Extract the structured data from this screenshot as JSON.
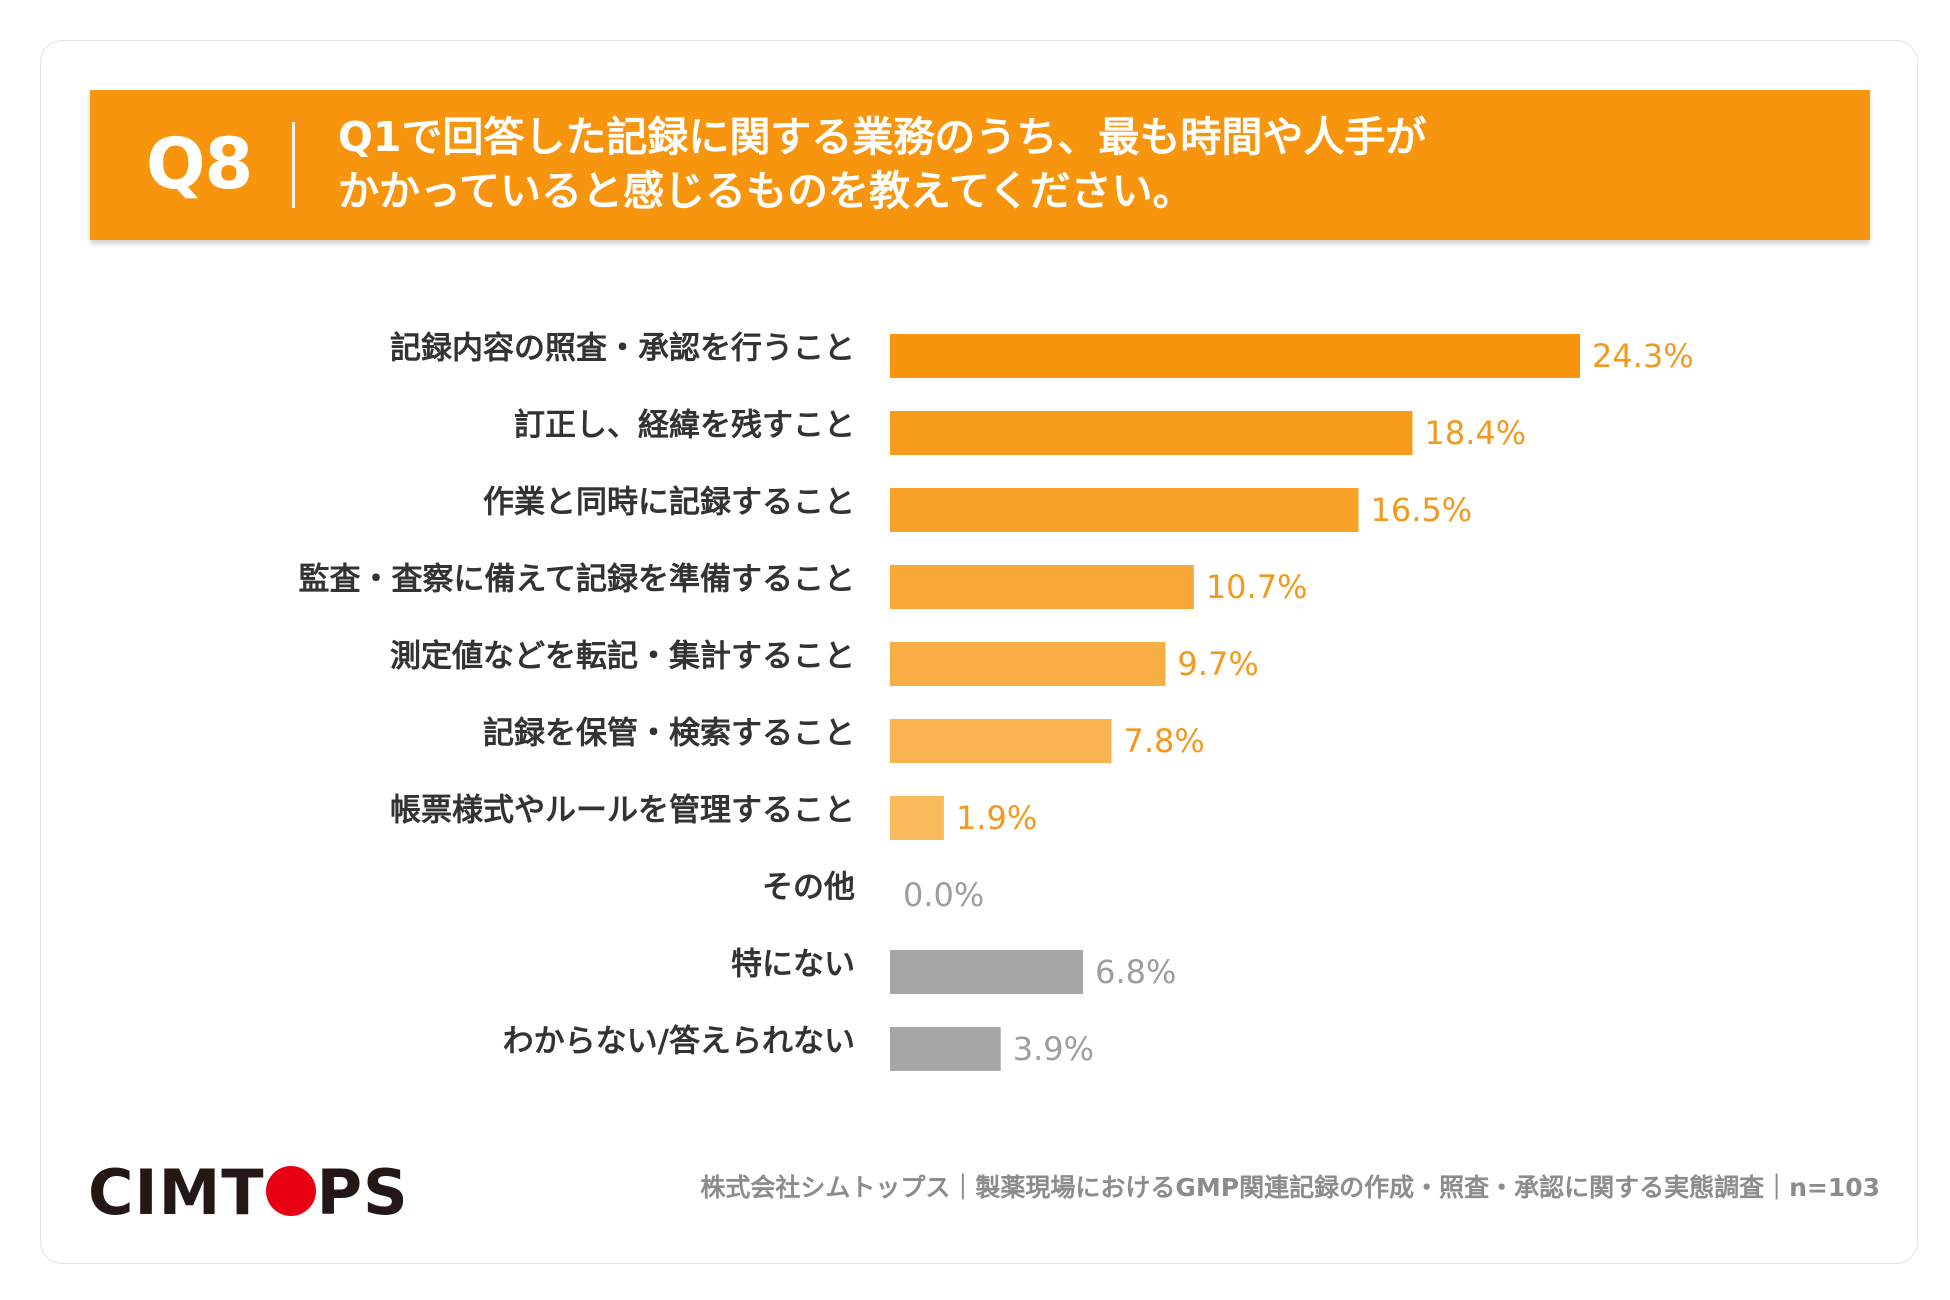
{
  "header": {
    "question_number": "Q8",
    "question_line1": "Q1で回答した記録に関する業務のうち、最も時間や人手が",
    "question_line2": "かかっていると感じるものを教えてください。"
  },
  "colors": {
    "banner": "#f7950f",
    "series_orange": [
      "#f7950f",
      "#f79c1c",
      "#f8a22a",
      "#f8a837",
      "#f9ae44",
      "#f9b450",
      "#fabb5c"
    ],
    "gray_bar": "#a6a6a6",
    "gray_label": "#9e9e9e",
    "orange_label": "#f39a1e"
  },
  "chart_data": {
    "type": "bar",
    "orientation": "horizontal",
    "title": "",
    "xlabel": "",
    "ylabel": "",
    "xlim": [
      0,
      24.3
    ],
    "grid": false,
    "legend": "none",
    "categories": [
      "記録内容の照査・承認を行うこと",
      "訂正し、経緯を残すこと",
      "作業と同時に記録すること",
      "監査・査察に備えて記録を準備すること",
      "測定値などを転記・集計すること",
      "記録を保管・検索すること",
      "帳票様式やルールを管理すること",
      "その他",
      "特にない",
      "わからない/答えられない"
    ],
    "values": [
      24.3,
      18.4,
      16.5,
      10.7,
      9.7,
      7.8,
      1.9,
      0.0,
      6.8,
      3.9
    ],
    "value_labels": [
      "24.3%",
      "18.4%",
      "16.5%",
      "10.7%",
      "9.7%",
      "7.8%",
      "1.9%",
      "0.0%",
      "6.8%",
      "3.9%"
    ],
    "bar_color_groups": [
      "orange",
      "orange",
      "orange",
      "orange",
      "orange",
      "orange",
      "orange",
      "gray",
      "gray",
      "gray"
    ]
  },
  "footer": {
    "logo": "CIMTOPS",
    "source": "株式会社シムトップス｜製薬現場におけるGMP関連記録の作成・照査・承認に関する実態調査｜n=103"
  }
}
